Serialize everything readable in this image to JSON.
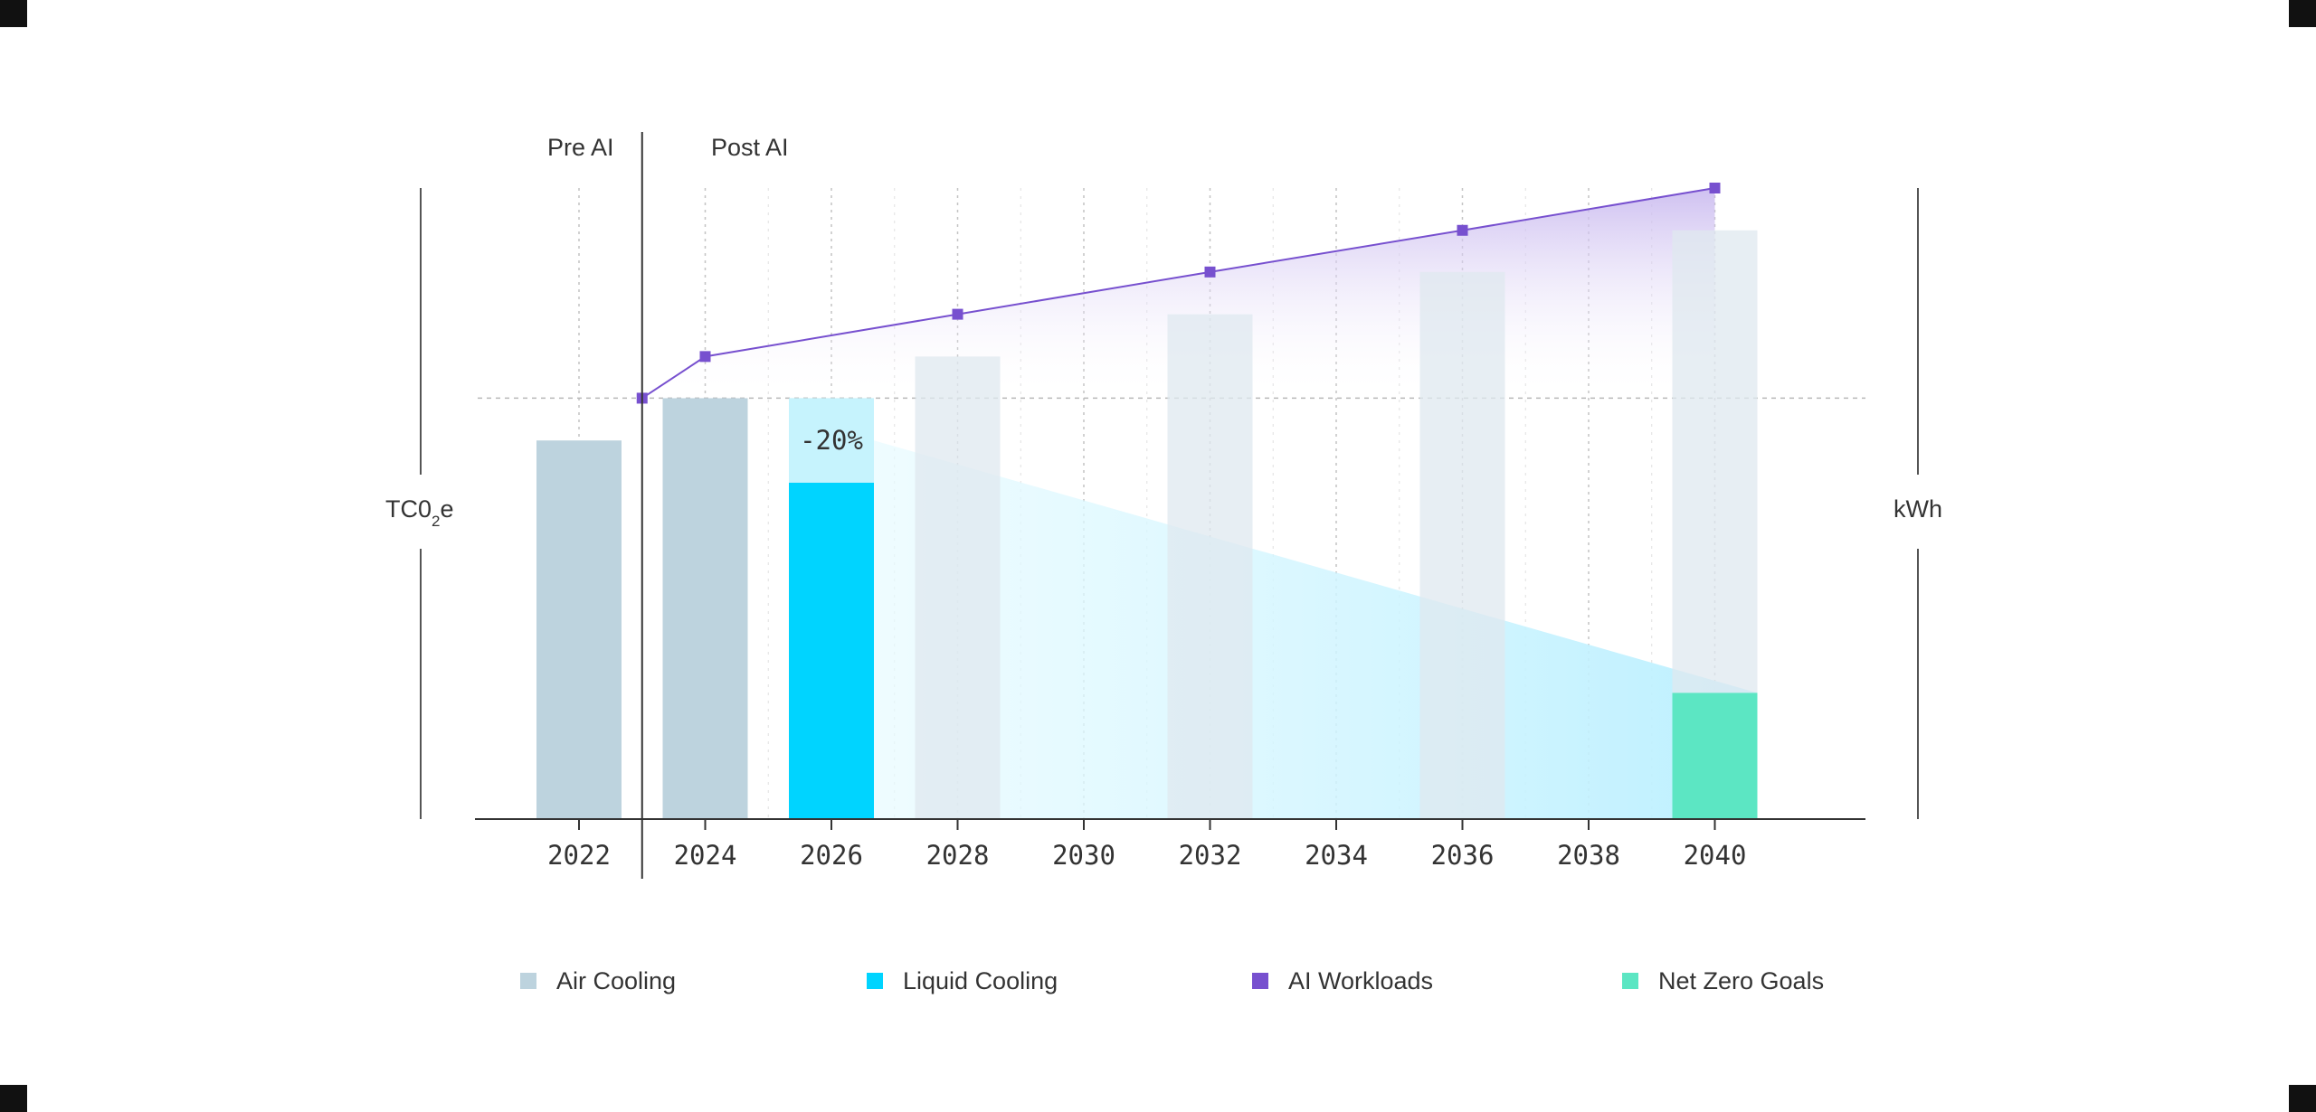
{
  "chart_data": {
    "type": "bar",
    "title": "",
    "xlabel": "",
    "ylabel_left": {
      "main": "TC0",
      "sub": "2",
      "tail": "e"
    },
    "ylabel_right": "kWh",
    "period_labels": {
      "pre": "Pre AI",
      "post": "Post AI"
    },
    "categories": [
      "2022",
      "2024",
      "2026",
      "2028",
      "2030",
      "2032",
      "2034",
      "2036",
      "2038",
      "2040"
    ],
    "ylim": [
      0,
      100
    ],
    "reference_value": 66.7,
    "series": [
      {
        "name": "Air Cooling",
        "color": "#bdd3de",
        "values": [
          60,
          66.7,
          66.7,
          73.3,
          null,
          80,
          null,
          86.7,
          null,
          93.3
        ]
      },
      {
        "name": "Liquid Cooling",
        "color": "#00d4ff",
        "values": [
          null,
          null,
          53.3,
          null,
          null,
          null,
          null,
          null,
          null,
          null
        ],
        "trend_start": 60,
        "trend_end": 20
      },
      {
        "name": "AI Workloads",
        "color": "#7750cf",
        "type": "line",
        "x": [
          "2023",
          "2024",
          "2028",
          "2032",
          "2036",
          "2040"
        ],
        "values": [
          66.7,
          73.3,
          80,
          86.7,
          93.3,
          100
        ]
      },
      {
        "name": "Net Zero Goals",
        "color": "#5ce6c3",
        "values": [
          null,
          null,
          null,
          null,
          null,
          null,
          null,
          null,
          null,
          20
        ]
      }
    ],
    "annotation": "-20%",
    "grid": true,
    "legend_position": "bottom"
  }
}
